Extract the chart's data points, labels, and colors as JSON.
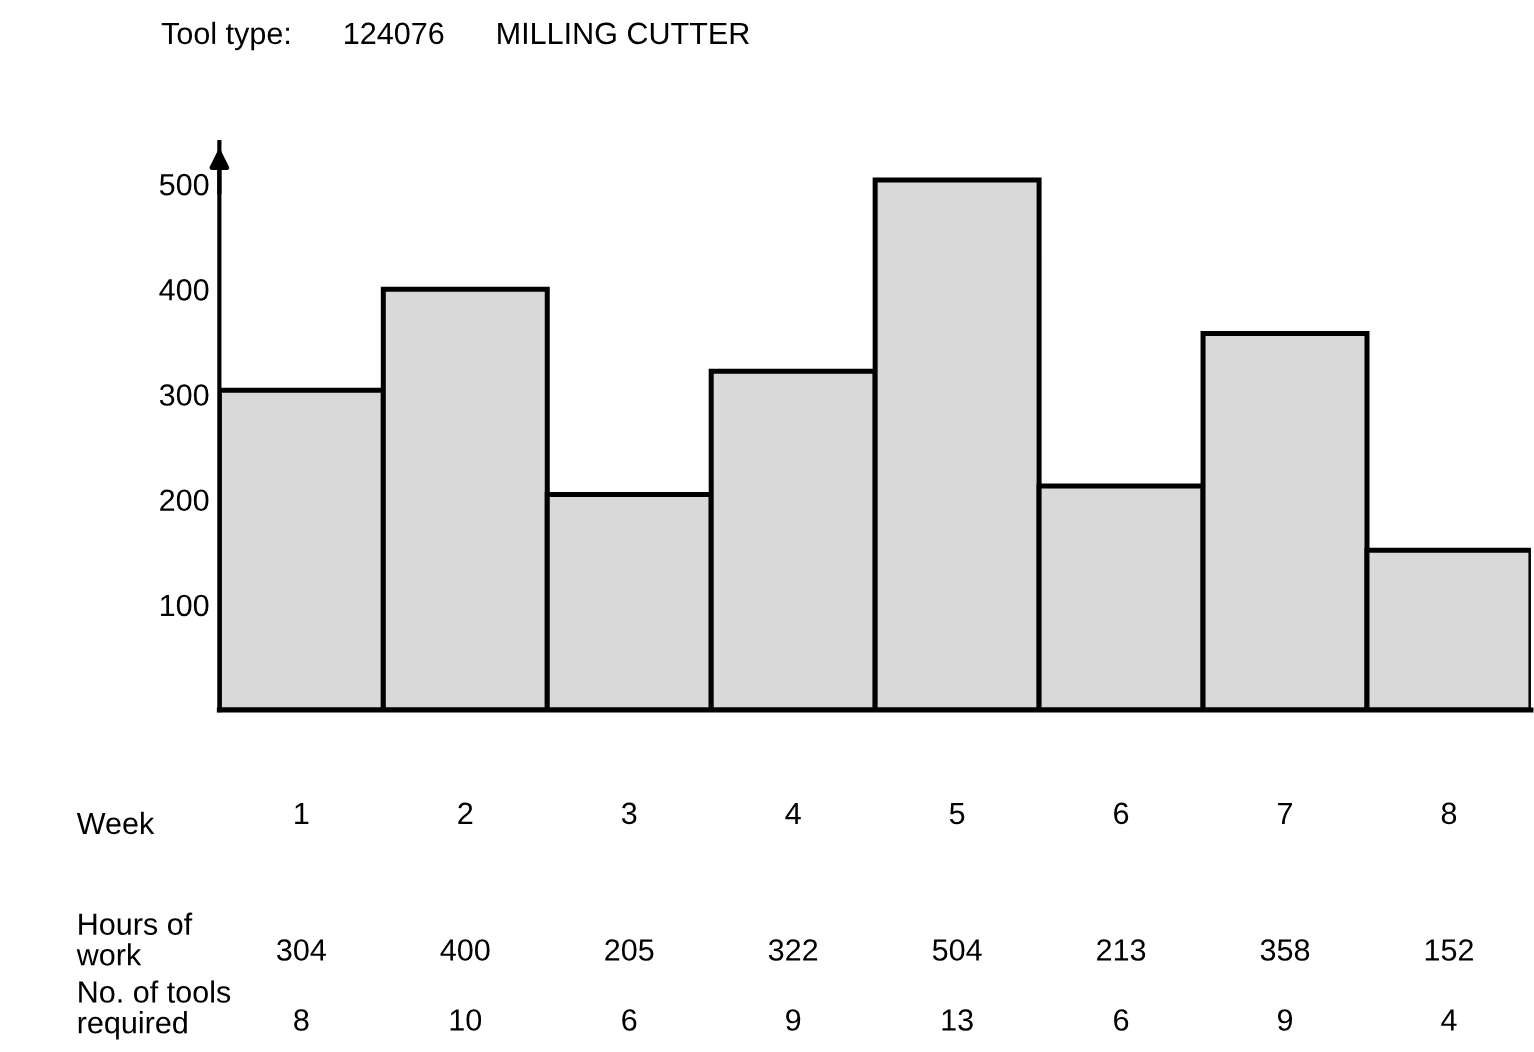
{
  "chart_data": {
    "type": "bar",
    "title": "Tool type:      124076      MILLING CUTTER",
    "xlabel": "Week",
    "ylabel": "Hours of\nwork",
    "categories": [
      "1",
      "2",
      "3",
      "4",
      "5",
      "6",
      "7",
      "8"
    ],
    "values": [
      304,
      400,
      205,
      322,
      504,
      213,
      358,
      152
    ],
    "color": "#d9d9d9",
    "data_labels": true,
    "ylim": [
      0,
      540
    ],
    "yticks": [
      100,
      200,
      300,
      400,
      500
    ],
    "grid": false,
    "annotations": [
      "No. of tools\nrequired",
      "8",
      "10",
      "6",
      "9",
      "13",
      "6",
      "9",
      "4"
    ]
  }
}
